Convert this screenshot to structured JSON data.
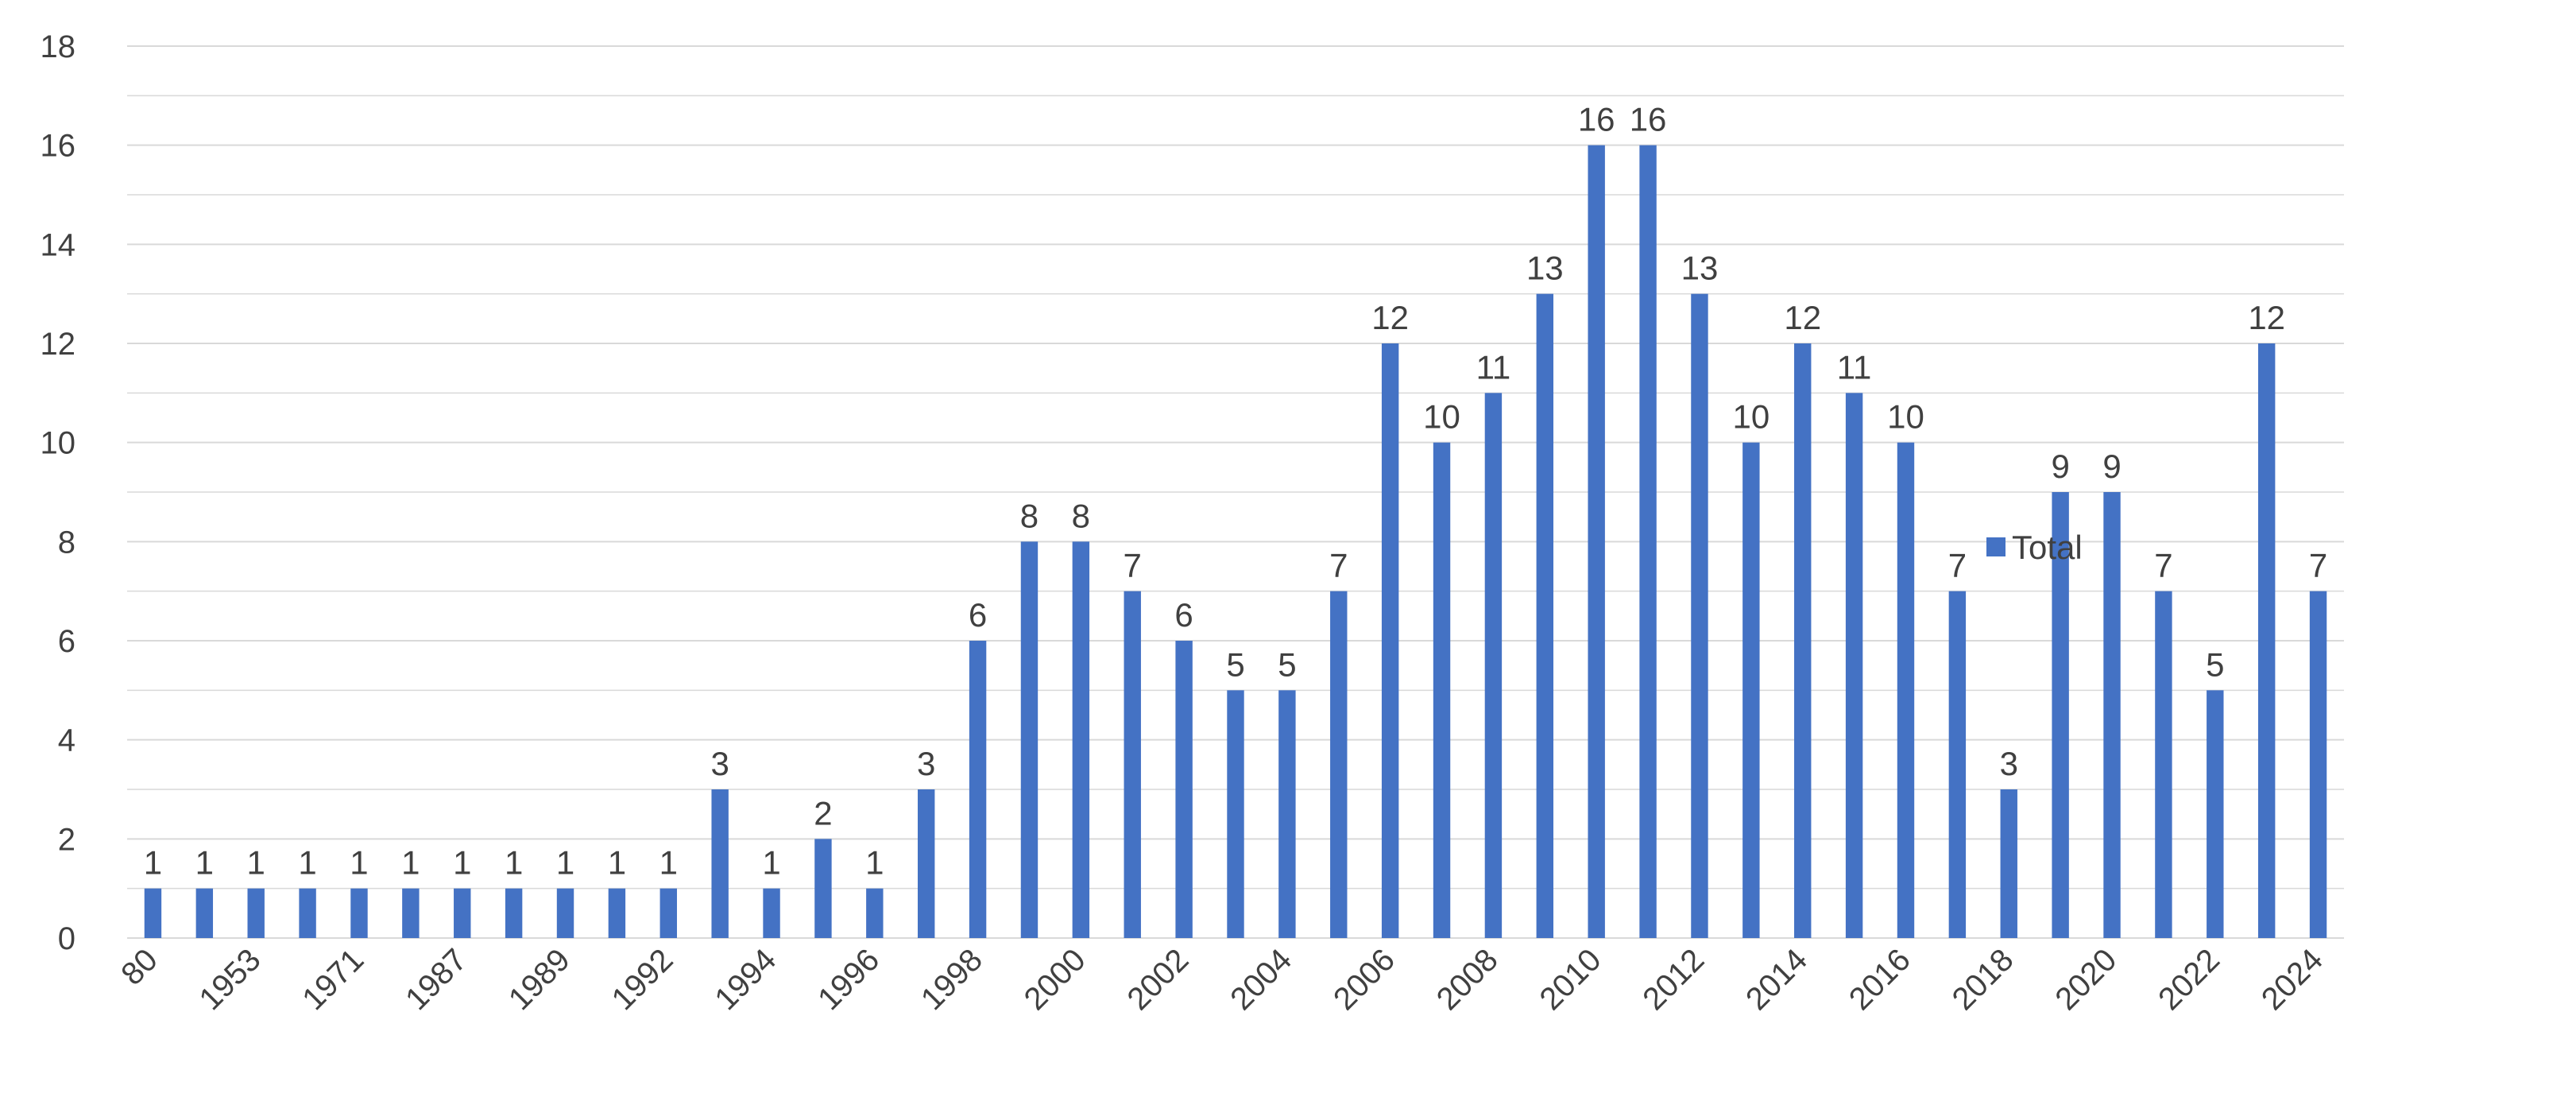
{
  "chart_data": {
    "type": "bar",
    "categories": [
      "80",
      "",
      "1953",
      "",
      "1971",
      "",
      "1987",
      "",
      "1989",
      "",
      "1992",
      "",
      "1994",
      "",
      "1996",
      "",
      "1998",
      "",
      "2000",
      "",
      "2002",
      "",
      "2004",
      "",
      "2006",
      "",
      "2008",
      "",
      "2010",
      "",
      "2012",
      "",
      "2014",
      "",
      "2016",
      "",
      "2018",
      "",
      "2020",
      "",
      "2022",
      "",
      "2024"
    ],
    "series": [
      {
        "name": "Total",
        "values": [
          1,
          1,
          1,
          1,
          1,
          1,
          1,
          1,
          1,
          1,
          1,
          3,
          1,
          2,
          1,
          3,
          6,
          8,
          8,
          7,
          6,
          5,
          5,
          7,
          12,
          10,
          11,
          13,
          16,
          16,
          13,
          10,
          12,
          11,
          10,
          7,
          3,
          9,
          9,
          7,
          5,
          12,
          7
        ]
      }
    ],
    "ylim": [
      0,
      18
    ],
    "yticks": [
      "0",
      "2",
      "4",
      "6",
      "8",
      "10",
      "12",
      "14",
      "16",
      "18"
    ],
    "title": "",
    "xlabel": "",
    "ylabel": "",
    "data_labels": true,
    "grid": true,
    "legend": "right",
    "colors": {
      "bar": "#4472C4",
      "grid": "#D9D9D9",
      "text": "#404040"
    }
  }
}
